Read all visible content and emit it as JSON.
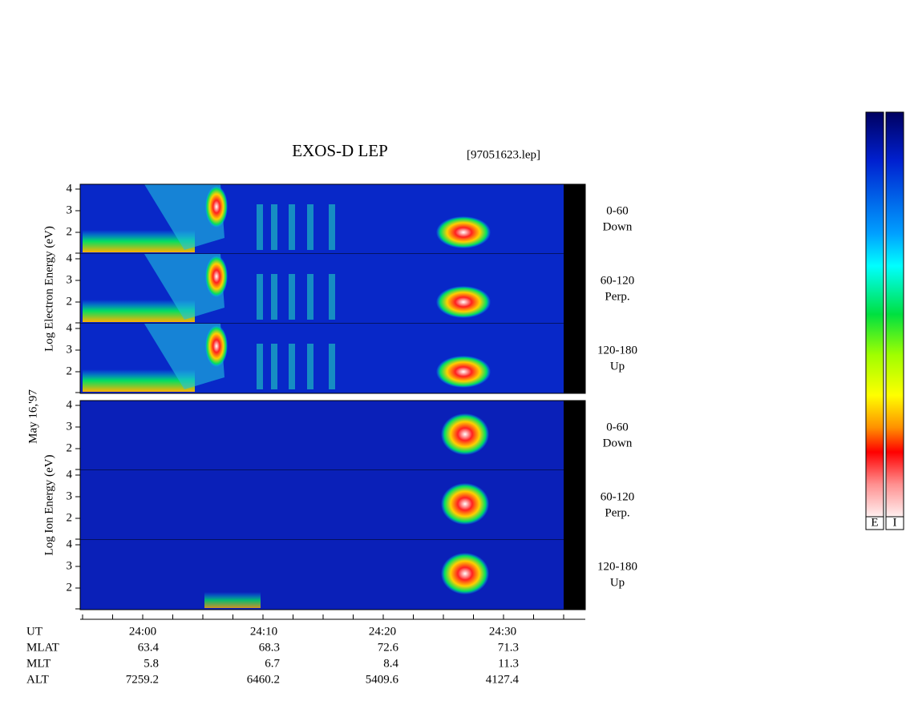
{
  "header": {
    "title": "EXOS-D LEP",
    "file": "[97051623.lep]"
  },
  "date": "May 16,'97",
  "groups": [
    {
      "axis_label": "Log Electron Energy (eV)",
      "panels": [
        {
          "pitch_angle": "0-60",
          "direction": "Down",
          "yticks": [
            4,
            3,
            2
          ]
        },
        {
          "pitch_angle": "60-120",
          "direction": "Perp.",
          "yticks": [
            4,
            3,
            2
          ]
        },
        {
          "pitch_angle": "120-180",
          "direction": "Up",
          "yticks": [
            4,
            3,
            2
          ]
        }
      ]
    },
    {
      "axis_label": "Log Ion Energy (eV)",
      "panels": [
        {
          "pitch_angle": "0-60",
          "direction": "Down",
          "yticks": [
            4,
            3,
            2
          ]
        },
        {
          "pitch_angle": "60-120",
          "direction": "Perp.",
          "yticks": [
            4,
            3,
            2
          ]
        },
        {
          "pitch_angle": "120-180",
          "direction": "Up",
          "yticks": [
            4,
            3,
            2
          ]
        }
      ]
    }
  ],
  "time_axis": {
    "name": "UT",
    "ticks": [
      "24:00",
      "24:10",
      "24:20",
      "24:30"
    ]
  },
  "ephemeris": [
    {
      "name": "MLAT",
      "values": [
        63.4,
        68.3,
        72.6,
        71.3
      ]
    },
    {
      "name": "MLT",
      "values": [
        5.8,
        6.7,
        8.4,
        11.3
      ]
    },
    {
      "name": "ALT",
      "values": [
        7259.2,
        6460.2,
        5409.6,
        4127.4
      ]
    }
  ],
  "colorbar": {
    "labels": [
      "E",
      "I"
    ]
  }
}
